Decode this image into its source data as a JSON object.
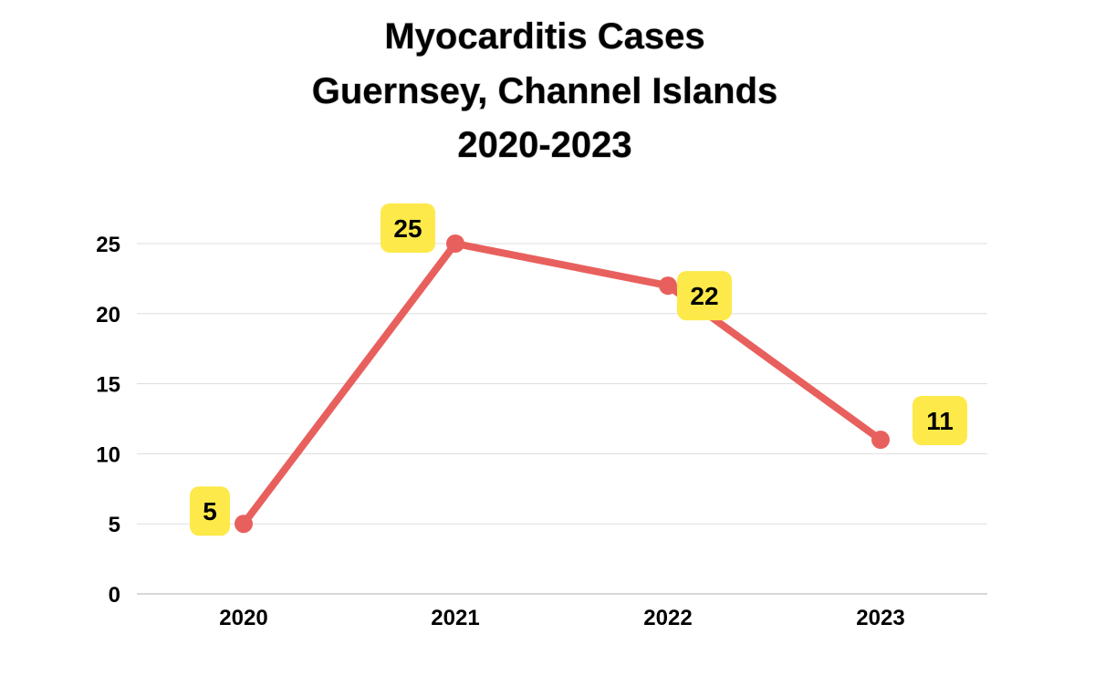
{
  "chart_data": {
    "type": "line",
    "title": [
      "Myocarditis Cases",
      "Guernsey, Channel Islands",
      "2020-2023"
    ],
    "categories": [
      "2020",
      "2021",
      "2022",
      "2023"
    ],
    "series": [
      {
        "values": [
          5,
          25,
          22,
          11
        ]
      }
    ],
    "ylim": [
      0,
      25
    ],
    "yticks": [
      "0",
      "5",
      "10",
      "15",
      "20",
      "25"
    ],
    "grid": true,
    "legend": "none",
    "colors": {
      "line": "#e8605d",
      "label_bg": "#fde94a",
      "grid": "#dddddd",
      "axis": "#c8c8c8"
    }
  }
}
